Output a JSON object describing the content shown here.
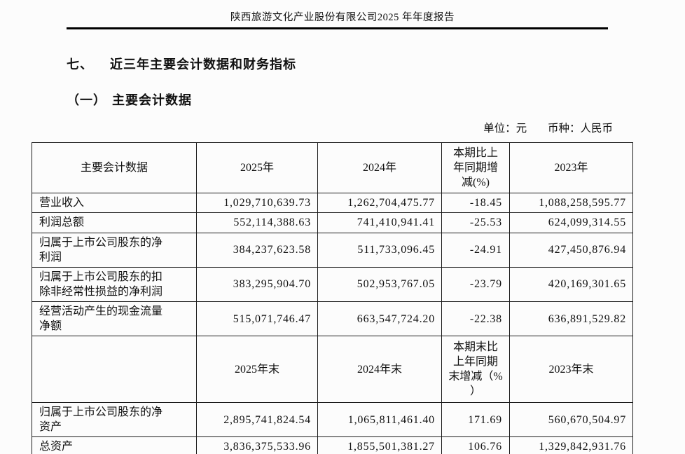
{
  "page": {
    "header_title": "陕西旅游文化产业股份有限公司2025 年年度报告",
    "section_number": "七、",
    "section_title": "近三年主要会计数据和财务指标",
    "subsection_number": "（一）",
    "subsection_title": "主要会计数据",
    "unit_label": "单位：元",
    "currency_label": "币种：人民币"
  },
  "colors": {
    "background": "#fcfcfc",
    "border": "#1c1c1c",
    "text": "#111111",
    "rule": "#000000"
  },
  "table": {
    "period_header": {
      "col_label": "主要会计数据",
      "col_2025": "2025年",
      "col_2024": "2024年",
      "col_pct": "本期比上\n年同期增\n减(%)",
      "col_2023": "2023年"
    },
    "period_rows": [
      {
        "label": "营业收入",
        "y2025": "1,029,710,639.73",
        "y2024": "1,262,704,475.77",
        "pct": "-18.45",
        "y2023": "1,088,258,595.77"
      },
      {
        "label": "利润总额",
        "y2025": "552,114,388.63",
        "y2024": "741,410,941.41",
        "pct": "-25.53",
        "y2023": "624,099,314.55"
      },
      {
        "label": "归属于上市公司股东的净利润",
        "y2025": "384,237,623.58",
        "y2024": "511,733,096.45",
        "pct": "-24.91",
        "y2023": "427,450,876.94"
      },
      {
        "label": "归属于上市公司股东的扣除非经常性损益的净利润",
        "y2025": "383,295,904.70",
        "y2024": "502,953,767.05",
        "pct": "-23.79",
        "y2023": "420,169,301.65"
      },
      {
        "label": "经营活动产生的现金流量净额",
        "y2025": "515,071,746.47",
        "y2024": "663,547,724.20",
        "pct": "-22.38",
        "y2023": "636,891,529.82"
      }
    ],
    "period_end_header": {
      "col_label": "",
      "col_2025": "2025年末",
      "col_2024": "2024年末",
      "col_pct": "本期末比\n上年同期\n末增减（%\n）",
      "col_2023": "2023年末"
    },
    "period_end_rows": [
      {
        "label": "归属于上市公司股东的净资产",
        "y2025": "2,895,741,824.54",
        "y2024": "1,065,811,461.40",
        "pct": "171.69",
        "y2023": "560,670,504.97"
      },
      {
        "label": "总资产",
        "y2025": "3,836,375,533.96",
        "y2024": "1,855,501,381.27",
        "pct": "106.76",
        "y2023": "1,329,842,931.76"
      }
    ]
  }
}
